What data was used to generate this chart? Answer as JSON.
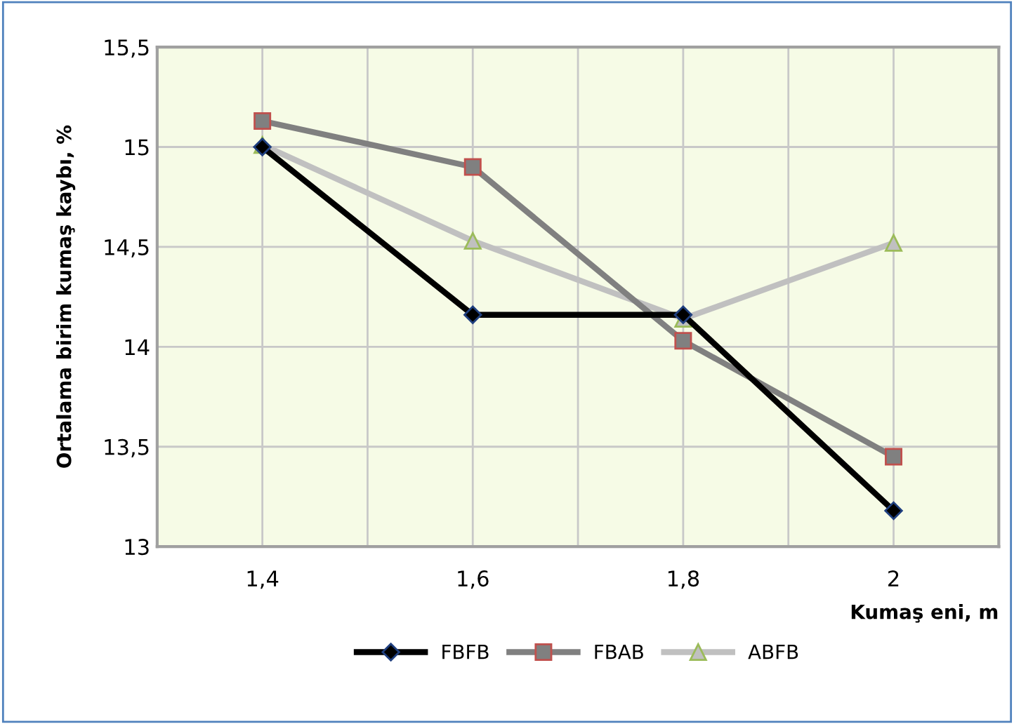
{
  "chart_data": {
    "type": "line",
    "xlabel": "Kumaş eni, m",
    "ylabel": "Ortalama birim kumaş kaybı, %",
    "categories": [
      "1,4",
      "1,6",
      "1,8",
      "2"
    ],
    "series": [
      {
        "name": "FBFB",
        "color": "#000000",
        "marker": "diamond",
        "values": [
          15.0,
          14.16,
          14.16,
          13.18
        ]
      },
      {
        "name": "FBAB",
        "color": "#808080",
        "marker": "square",
        "values": [
          15.13,
          14.9,
          14.03,
          13.45
        ]
      },
      {
        "name": "ABFB",
        "color": "#c0c0c0",
        "marker": "triangle",
        "values": [
          15.01,
          14.53,
          14.14,
          14.52
        ]
      }
    ],
    "ylim": [
      13,
      15.5
    ],
    "yticks": [
      {
        "value": 13,
        "label": "13"
      },
      {
        "value": 13.5,
        "label": "13,5"
      },
      {
        "value": 14,
        "label": "14"
      },
      {
        "value": 14.5,
        "label": "14,5"
      },
      {
        "value": 15,
        "label": "15"
      },
      {
        "value": 15.5,
        "label": "15,5"
      }
    ],
    "grid": true,
    "legend": "bottom",
    "line_style": "solid"
  }
}
